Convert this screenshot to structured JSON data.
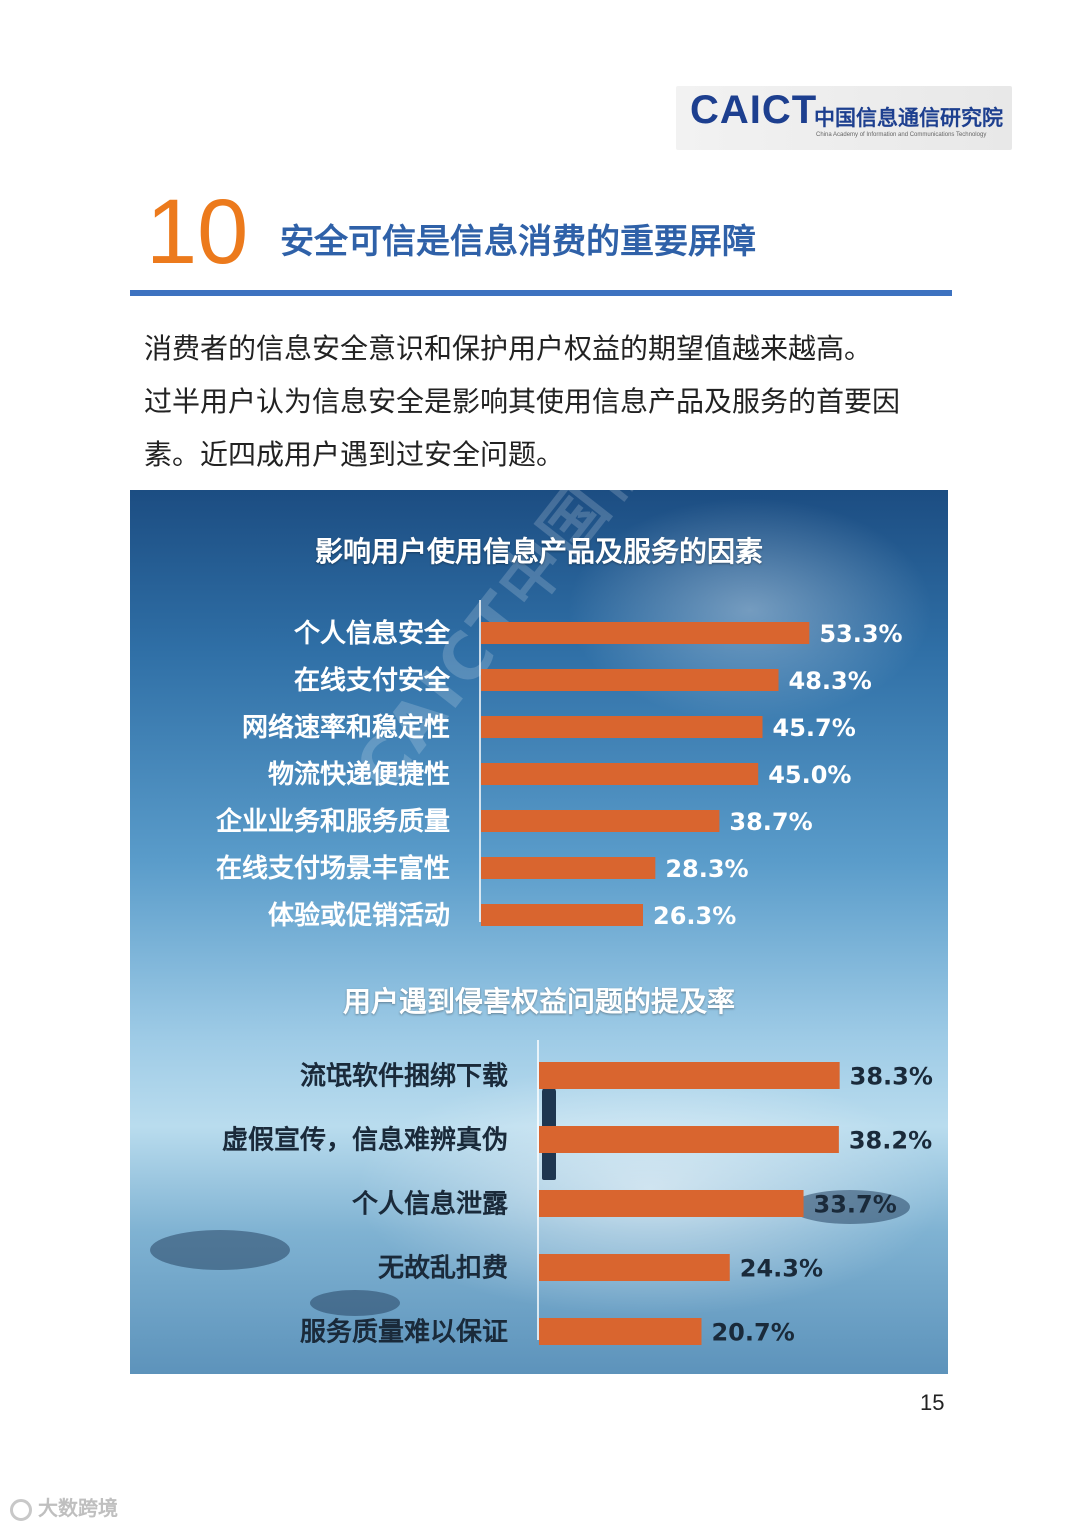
{
  "header": {
    "logo_caict": "CAICT",
    "logo_cn": "中国信息通信研究院",
    "logo_en": "China Academy of Information and Communications Technology"
  },
  "section": {
    "number": "10",
    "title": "安全可信是信息消费的重要屏障"
  },
  "intro": {
    "lines": [
      "消费者的信息安全意识和保护用户权益的期望值越来越高。",
      "过半用户认为信息安全是影响其使用信息产品及服务的首要因",
      "素。近四成用户遇到过安全问题。"
    ]
  },
  "watermark": "CAICT中国信通院",
  "chart_data": [
    {
      "type": "bar",
      "orientation": "horizontal",
      "title": "影响用户使用信息产品及服务的因素",
      "categories": [
        "个人信息安全",
        "在线支付安全",
        "网络速率和稳定性",
        "物流快递便捷性",
        "企业业务和服务质量",
        "在线支付场景丰富性",
        "体验或促销活动"
      ],
      "values": [
        53.3,
        48.3,
        45.7,
        45.0,
        38.7,
        28.3,
        26.3
      ],
      "value_labels": [
        "53.3%",
        "48.3%",
        "45.7%",
        "45.0%",
        "38.7%",
        "28.3%",
        "26.3%"
      ],
      "unit": "%",
      "bar_color": "#d9652f"
    },
    {
      "type": "bar",
      "orientation": "horizontal",
      "title": "用户遇到侵害权益问题的提及率",
      "categories": [
        "流氓软件捆绑下载",
        "虚假宣传，信息难辨真伪",
        "个人信息泄露",
        "无故乱扣费",
        "服务质量难以保证"
      ],
      "values": [
        38.3,
        38.2,
        33.7,
        24.3,
        20.7
      ],
      "value_labels": [
        "38.3%",
        "38.2%",
        "33.7%",
        "24.3%",
        "20.7%"
      ],
      "unit": "%",
      "bar_color": "#d9652f"
    }
  ],
  "page_number": "15",
  "footer": {
    "source_mark": "大数跨境"
  }
}
